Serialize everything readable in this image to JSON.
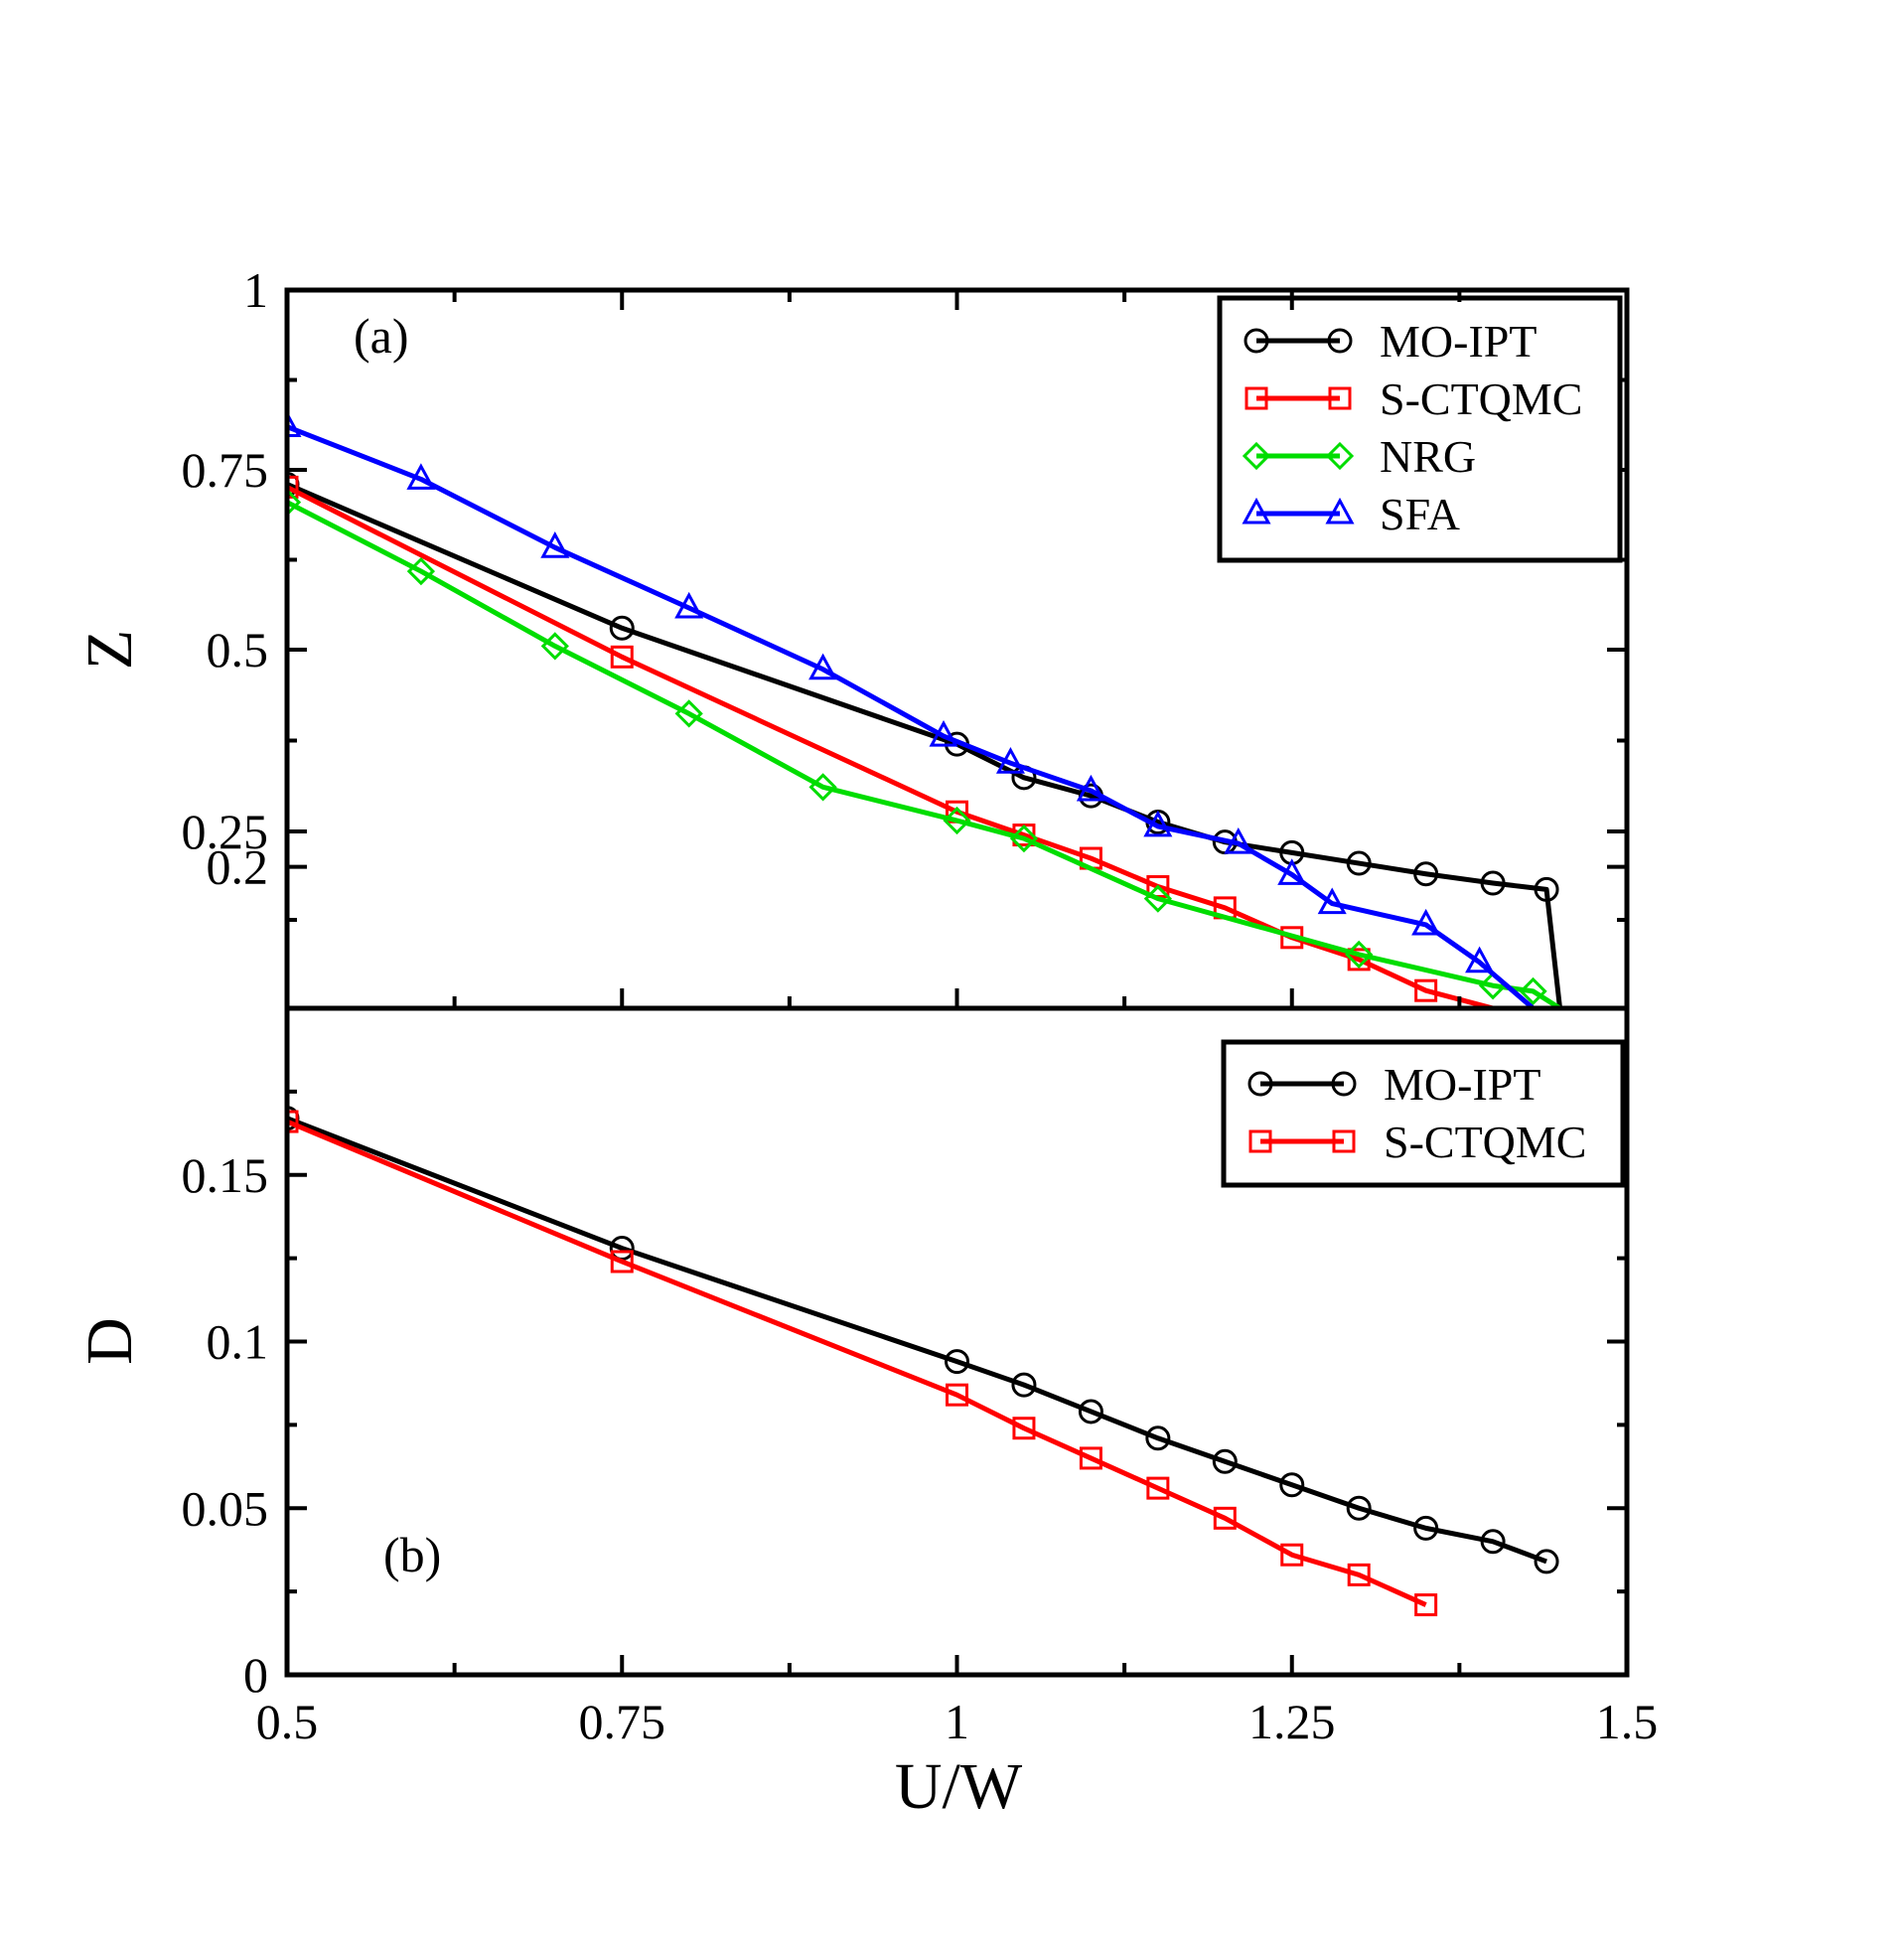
{
  "figure": {
    "x_axis_title": "U/W",
    "x_tick_labels": [
      "0.5",
      "0.75",
      "1",
      "1.25",
      "1.5"
    ]
  },
  "chart_data": [
    {
      "type": "line",
      "panel_label": "(a)",
      "ylabel": "Z",
      "xlabel": "U/W",
      "xlim": [
        0.5,
        1.5
      ],
      "tick_positions": [
        0.2,
        0.25,
        0.5,
        0.75,
        1
      ],
      "tick_labels": [
        "0.2",
        "0.25",
        "0.5",
        "0.75",
        "1"
      ],
      "legend_position": "top-right",
      "series": [
        {
          "name": "MO-IPT",
          "color": "#000000",
          "marker": "circle",
          "x": [
            0.5,
            0.75,
            1.0,
            1.05,
            1.1,
            1.15,
            1.2,
            1.25,
            1.3,
            1.35,
            1.4,
            1.44,
            1.45
          ],
          "y": [
            0.73,
            0.53,
            0.37,
            0.324,
            0.299,
            0.263,
            0.235,
            0.22,
            0.205,
            0.19,
            0.177,
            0.168,
            0.0
          ]
        },
        {
          "name": "S-CTQMC",
          "color": "#ff0000",
          "marker": "square",
          "x": [
            0.5,
            0.75,
            1.0,
            1.05,
            1.1,
            1.15,
            1.2,
            1.25,
            1.3,
            1.35,
            1.4
          ],
          "y": [
            0.726,
            0.49,
            0.277,
            0.245,
            0.212,
            0.172,
            0.142,
            0.1,
            0.069,
            0.025,
            0.0
          ]
        },
        {
          "name": "NRG",
          "color": "#00dd00",
          "marker": "diamond",
          "x": [
            0.5,
            0.6,
            0.7,
            0.8,
            0.9,
            1.0,
            1.05,
            1.15,
            1.3,
            1.4,
            1.43,
            1.45
          ],
          "y": [
            0.705,
            0.609,
            0.505,
            0.412,
            0.311,
            0.265,
            0.24,
            0.155,
            0.076,
            0.032,
            0.024,
            0.0
          ]
        },
        {
          "name": "SFA",
          "color": "#0000ff",
          "marker": "triangle",
          "x": [
            0.5,
            0.6,
            0.7,
            0.8,
            0.9,
            0.99,
            1.04,
            1.1,
            1.15,
            1.21,
            1.25,
            1.28,
            1.35,
            1.39,
            1.43
          ],
          "y": [
            0.81,
            0.737,
            0.642,
            0.558,
            0.473,
            0.381,
            0.344,
            0.306,
            0.257,
            0.233,
            0.189,
            0.148,
            0.118,
            0.065,
            0.0
          ]
        }
      ]
    },
    {
      "type": "line",
      "panel_label": "(b)",
      "ylabel": "D",
      "xlabel": "U/W",
      "xlim": [
        0.5,
        1.5
      ],
      "ylim": [
        0,
        0.2
      ],
      "tick_positions": [
        0,
        0.05,
        0.1,
        0.15
      ],
      "tick_labels": [
        "0",
        "0.05",
        "0.1",
        "0.15"
      ],
      "legend_position": "top-right",
      "series": [
        {
          "name": "MO-IPT",
          "color": "#000000",
          "marker": "circle",
          "x": [
            0.5,
            0.75,
            1.0,
            1.05,
            1.1,
            1.15,
            1.2,
            1.25,
            1.3,
            1.35,
            1.4,
            1.44
          ],
          "y": [
            0.167,
            0.128,
            0.094,
            0.087,
            0.079,
            0.071,
            0.064,
            0.057,
            0.05,
            0.044,
            0.04,
            0.034
          ]
        },
        {
          "name": "S-CTQMC",
          "color": "#ff0000",
          "marker": "square",
          "x": [
            0.5,
            0.75,
            1.0,
            1.05,
            1.1,
            1.15,
            1.2,
            1.25,
            1.3,
            1.35
          ],
          "y": [
            0.166,
            0.124,
            0.084,
            0.074,
            0.065,
            0.056,
            0.047,
            0.036,
            0.03,
            0.021
          ]
        }
      ]
    }
  ]
}
